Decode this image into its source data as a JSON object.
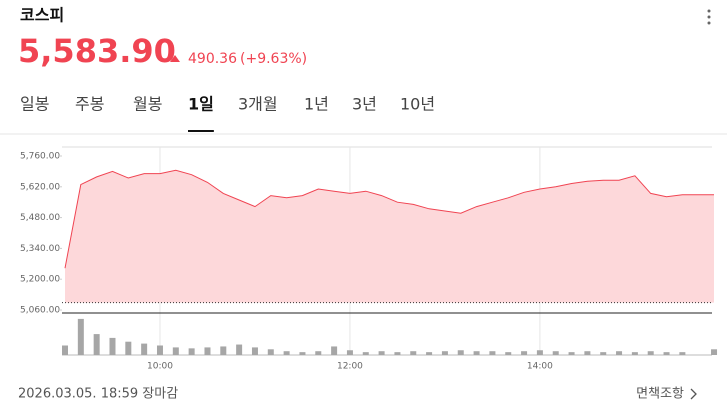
{
  "header": {
    "name": "코스피",
    "price": "5,583.90",
    "change": "490.36",
    "change_pct": "(+9.63%)"
  },
  "tabs": [
    "일봉",
    "주봉",
    "월봉",
    "1일",
    "3개월",
    "1년",
    "3년",
    "10년"
  ],
  "active_tab": 3,
  "footer": {
    "timestamp": "2026.03.05. 18:59 장마감",
    "disclaimer": "면책조항"
  },
  "chart_data": {
    "type": "area",
    "x": [
      "09:00",
      "09:10",
      "09:20",
      "09:30",
      "09:40",
      "09:50",
      "10:00",
      "10:10",
      "10:20",
      "10:30",
      "10:40",
      "10:50",
      "11:00",
      "11:10",
      "11:20",
      "11:30",
      "11:40",
      "11:50",
      "12:00",
      "12:10",
      "12:20",
      "12:30",
      "12:40",
      "12:50",
      "13:00",
      "13:10",
      "13:20",
      "13:30",
      "13:40",
      "13:50",
      "14:00",
      "14:10",
      "14:20",
      "14:30",
      "14:40",
      "14:50",
      "15:00",
      "15:10",
      "15:20",
      "15:30",
      "15:40",
      "15:50"
    ],
    "values": [
      5250,
      5630,
      5665,
      5690,
      5660,
      5680,
      5680,
      5695,
      5675,
      5640,
      5590,
      5560,
      5530,
      5580,
      5570,
      5580,
      5610,
      5600,
      5590,
      5600,
      5580,
      5550,
      5540,
      5520,
      5510,
      5500,
      5530,
      5550,
      5570,
      5595,
      5610,
      5620,
      5635,
      5645,
      5650,
      5650,
      5670,
      5590,
      5575,
      5583.9,
      5583.9,
      5583.9
    ],
    "volume": [
      10,
      38,
      22,
      18,
      14,
      12,
      10,
      8,
      7,
      8,
      9,
      11,
      8,
      6,
      4,
      3,
      4,
      9,
      5,
      3,
      4,
      3,
      4,
      3,
      4,
      5,
      4,
      4,
      3,
      4,
      5,
      4,
      3,
      4,
      3,
      4,
      3,
      4,
      3,
      3,
      0,
      6
    ],
    "volume_lim": [
      0,
      40
    ],
    "color": "#f04452",
    "fill": "#fdd8da",
    "reference_line": 5093.54,
    "ylim": [
      5060,
      5760
    ],
    "yticks": [
      {
        "value": 5060,
        "label": "5,060.00"
      },
      {
        "value": 5200,
        "label": "5,200.00"
      },
      {
        "value": 5340,
        "label": "5,340.00"
      },
      {
        "value": 5480,
        "label": "5,480.00"
      },
      {
        "value": 5620,
        "label": "5,620.00"
      },
      {
        "value": 5760,
        "label": "5,760.00"
      }
    ],
    "xticks": [
      "10:00",
      "12:00",
      "14:00"
    ],
    "grid": true
  }
}
